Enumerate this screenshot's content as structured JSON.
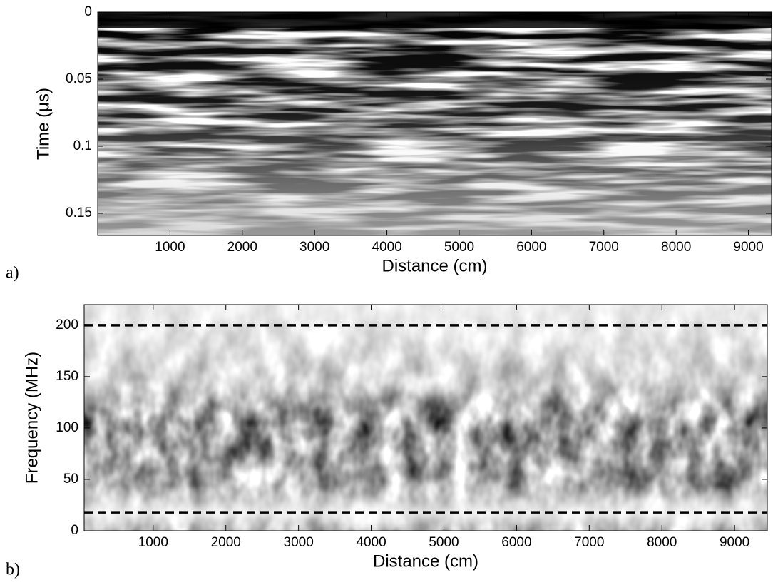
{
  "chart_data": [
    {
      "type": "image",
      "panel_label": "a)",
      "xlabel": "Distance (cm)",
      "ylabel": "Time (μs)",
      "xlim": [
        0,
        9320
      ],
      "xticks": [
        1000,
        2000,
        3000,
        4000,
        5000,
        6000,
        7000,
        8000,
        9000
      ],
      "ylim": [
        0,
        0.1665
      ],
      "yticks": [
        0,
        0.05,
        0.1,
        0.15
      ],
      "y_inverted": true
    },
    {
      "type": "image",
      "panel_label": "b)",
      "xlabel": "Distance (cm)",
      "ylabel": "Frequency (MHz)",
      "xlim": [
        50,
        9450
      ],
      "xticks": [
        1000,
        2000,
        3000,
        4000,
        5000,
        6000,
        7000,
        8000,
        9000
      ],
      "ylim": [
        0,
        220
      ],
      "yticks": [
        0,
        50,
        100,
        150,
        200
      ],
      "y_inverted": false,
      "hlines": [
        200,
        18
      ],
      "hline_color": "#000000"
    }
  ]
}
